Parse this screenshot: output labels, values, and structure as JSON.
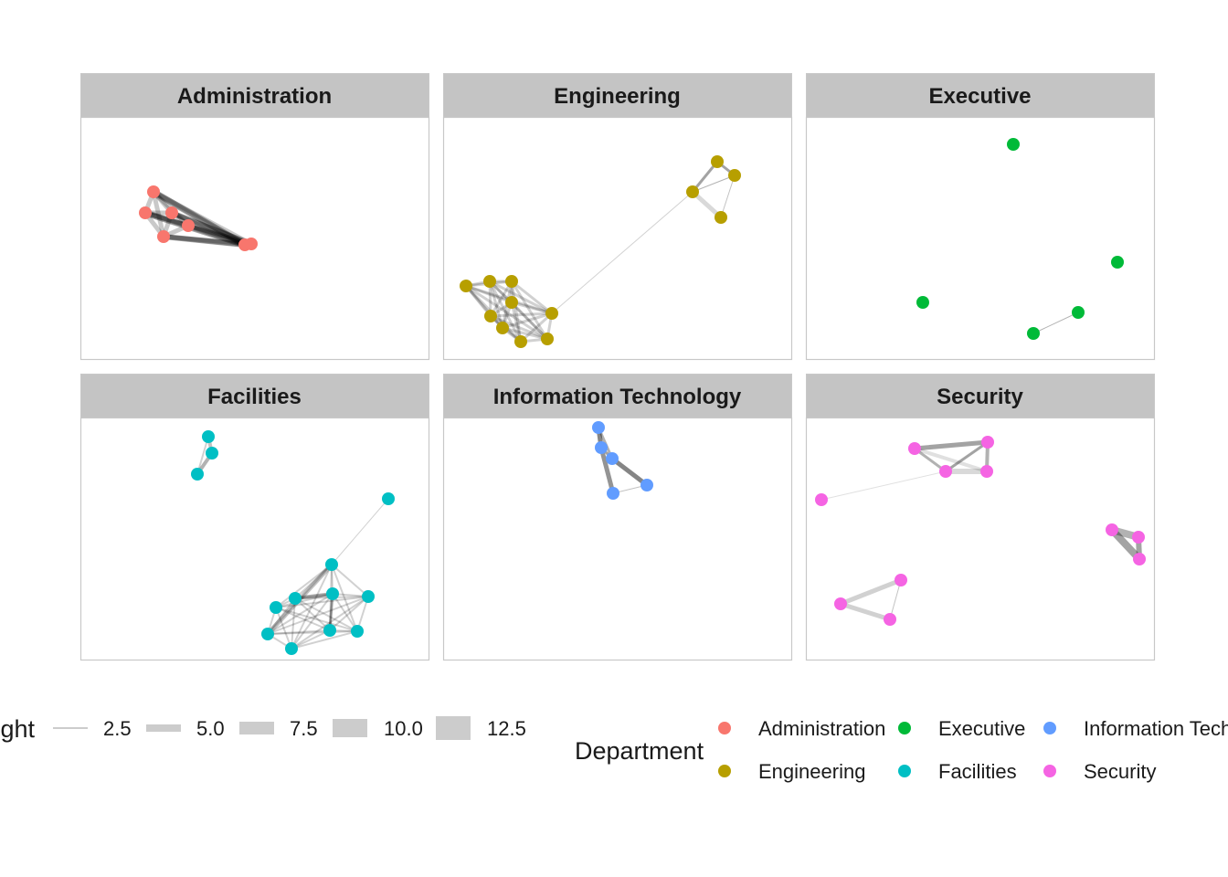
{
  "panels": [
    {
      "title": "Administration",
      "color": "#F8766D"
    },
    {
      "title": "Engineering",
      "color": "#B79F00"
    },
    {
      "title": "Executive",
      "color": "#00BA38"
    },
    {
      "title": "Facilities",
      "color": "#00BFC4"
    },
    {
      "title": "Information Technology",
      "color": "#619CFF"
    },
    {
      "title": "Security",
      "color": "#F564E3"
    }
  ],
  "legend_weight": {
    "title": "weight",
    "items": [
      "2.5",
      "5.0",
      "7.5",
      "10.0",
      "12.5"
    ],
    "color": "#cccccc"
  },
  "legend_department": {
    "title": "Department",
    "items": [
      {
        "label": "Administration",
        "color": "#F8766D"
      },
      {
        "label": "Engineering",
        "color": "#B79F00"
      },
      {
        "label": "Executive",
        "color": "#00BA38"
      },
      {
        "label": "Facilities",
        "color": "#00BFC4"
      },
      {
        "label": "Information Technology",
        "color": "#619CFF"
      },
      {
        "label": "Security",
        "color": "#F564E3"
      }
    ]
  }
}
